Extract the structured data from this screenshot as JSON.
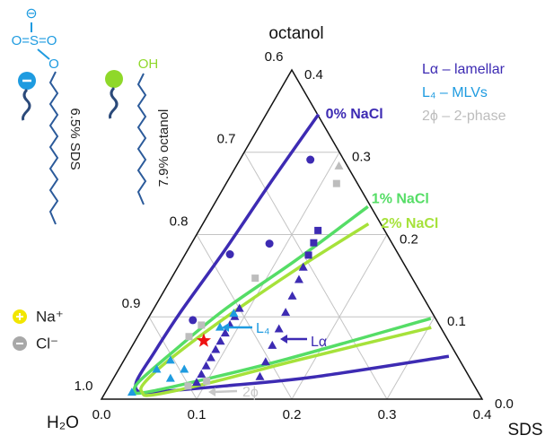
{
  "chart_data": {
    "type": "ternary",
    "axis_labels": {
      "top": "octanol",
      "left": "H₂O",
      "right": "SDS"
    },
    "sds_lim": [
      0,
      0.4
    ],
    "octanol_lim": [
      0,
      0.4
    ],
    "water_lim": [
      0.6,
      1
    ],
    "sds_ticks": [
      {
        "value": 0,
        "label": "0.0"
      },
      0.1,
      0.2,
      0.3,
      0.4
    ],
    "water_ticks": [
      0.6,
      0.7,
      0.8,
      0.9,
      {
        "value": 1,
        "label": "1.0"
      }
    ],
    "octanol_ticks": [
      0.4,
      0.3,
      0.2,
      0.1,
      {
        "value": 0,
        "label": "0.0"
      }
    ],
    "grid": true,
    "curves": [
      {
        "name": "0% NaCl",
        "color": "#3d2bb3",
        "sds": [
          0.055,
          0.046,
          0.039,
          0.03,
          0.027,
          0.026,
          0.035,
          0.054,
          0.121,
          0.21,
          0.339
        ],
        "octanol": [
          0.346,
          0.262,
          0.18,
          0.104,
          0.055,
          0.022,
          0.009,
          0.009,
          0.016,
          0.027,
          0.052
        ]
      },
      {
        "name": "1% NaCl",
        "color": "#55dd66",
        "sds": [
          0.163,
          0.12,
          0.075,
          0.045,
          0.029,
          0.03,
          0.041,
          0.09,
          0.171,
          0.297
        ],
        "octanol": [
          0.234,
          0.169,
          0.109,
          0.055,
          0.022,
          0.01,
          0.008,
          0.022,
          0.049,
          0.098
        ]
      },
      {
        "name": "2% NaCl",
        "color": "#a6e23a",
        "sds": [
          0.174,
          0.126,
          0.08,
          0.048,
          0.035,
          0.039,
          0.051,
          0.101,
          0.181,
          0.303
        ],
        "octanol": [
          0.213,
          0.158,
          0.098,
          0.049,
          0.019,
          0.008,
          0.005,
          0.019,
          0.047,
          0.087
        ]
      }
    ],
    "series": [
      {
        "name": "Lα – lamellar",
        "color": "#3d2bb3",
        "sds": [
          0.09,
          0.09,
          0.09,
          0.09,
          0.09,
          0.09,
          0.09,
          0.09,
          0.09,
          0.09,
          0.153,
          0.15,
          0.147,
          0.144,
          0.141,
          0.138,
          0.135,
          0.132,
          0.13,
          0.128,
          0.125,
          0.074,
          0.082,
          0.047,
          0.048
        ],
        "octanol": [
          0.02,
          0.03,
          0.04,
          0.05,
          0.06,
          0.07,
          0.08,
          0.09,
          0.1,
          0.11,
          0.027,
          0.045,
          0.065,
          0.085,
          0.105,
          0.125,
          0.145,
          0.16,
          0.175,
          0.19,
          0.205,
          0.291,
          0.189,
          0.176,
          0.096
        ],
        "markers": [
          "triangle",
          "triangle",
          "triangle",
          "triangle",
          "triangle",
          "triangle",
          "triangle",
          "triangle",
          "triangle",
          "triangle",
          "triangle",
          "triangle",
          "triangle",
          "triangle",
          "triangle",
          "triangle",
          "triangle",
          "triangle",
          "square",
          "square",
          "square",
          "circle",
          "circle",
          "circle",
          "circle"
        ]
      },
      {
        "name": "L₄ – MLVs",
        "color": "#1e9be0",
        "sds": [
          0.028,
          0.04,
          0.049,
          0.069,
          0.081,
          0.087,
          0.06
        ],
        "octanol": [
          0.008,
          0.036,
          0.047,
          0.036,
          0.087,
          0.104,
          0.025
        ],
        "markers": [
          "triangle",
          "triangle",
          "triangle",
          "triangle",
          "triangle",
          "triangle",
          "triangle"
        ]
      },
      {
        "name": "2ϕ – 2-phase",
        "color": "#bdbdbd",
        "sds": [
          0.0995,
          0.083,
          0.108,
          0.116,
          0.088,
          0.054,
          0.06
        ],
        "octanol": [
          0.022,
          0.016,
          0.283,
          0.262,
          0.147,
          0.076,
          0.09
        ],
        "markers": [
          "square",
          "square",
          "triangle",
          "square",
          "square",
          "square",
          "square"
        ]
      }
    ],
    "highlight": {
      "color": "#ee1111",
      "sds": 0.072,
      "octanol": 0.071
    },
    "annotations": [
      {
        "text": "L₄",
        "color": "#1e9be0"
      },
      {
        "text": "Lα",
        "color": "#3d2bb3"
      },
      {
        "text": "2ϕ",
        "color": "#c8c8c8"
      }
    ]
  },
  "illustration": {
    "sulfate_charge": "⊖",
    "sulfate": "O=S=O",
    "sulfate_oxygen": "O",
    "hydroxyl": "OH",
    "sds_label": "6.5% SDS",
    "octanol_label": "7.9% octanol",
    "sodium": "Na⁺",
    "chloride": "Cl⁻"
  }
}
